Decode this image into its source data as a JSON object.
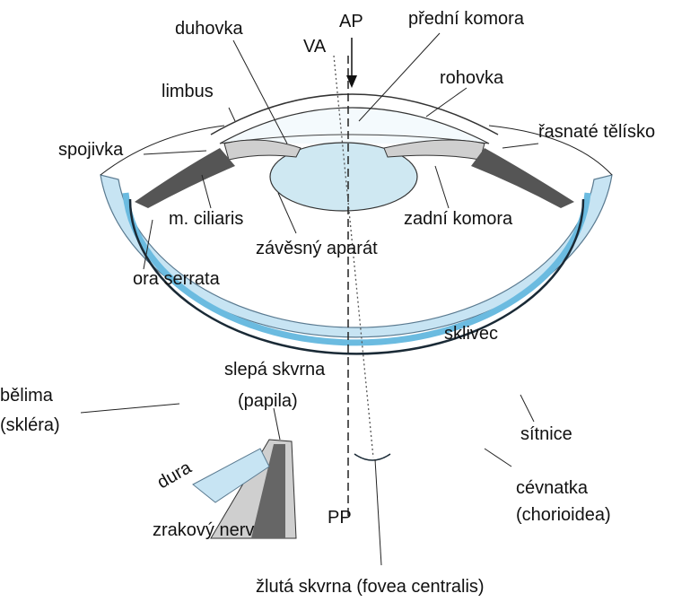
{
  "labels": [
    "duhovka",
    "VA",
    "AP",
    "přední komora",
    "rohovka",
    "limbus",
    "řasnaté tělísko",
    "spojivka",
    "m. ciliaris",
    "zadní komora",
    "závěsný aparát",
    "ora serrata",
    "sklivec",
    "slepá skvrna",
    "(papila)",
    "bělima",
    "(skléra)",
    "sítnice",
    "dura",
    "cévnatka",
    "(chorioidea)",
    "zrakový nerv",
    "PP",
    "žlutá skvrna (fovea centralis)"
  ]
}
